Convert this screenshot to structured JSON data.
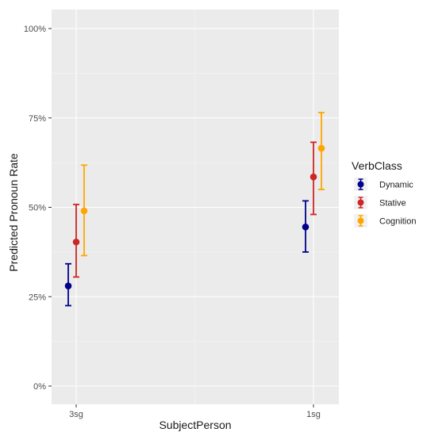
{
  "chart_data": {
    "type": "errorbar",
    "xlabel": "SubjectPerson",
    "ylabel": "Predicted Pronoun Rate",
    "categories": [
      "3sg",
      "1sg"
    ],
    "ylim": [
      0,
      1
    ],
    "yticks": [
      0,
      0.25,
      0.5,
      0.75,
      1.0
    ],
    "ytick_labels": [
      "0%",
      "25%",
      "50%",
      "75%",
      "100%"
    ],
    "grid": true,
    "legend": {
      "title": "VerbClass",
      "position": "right"
    },
    "series": [
      {
        "name": "Dynamic",
        "color": "#00008B",
        "points": [
          {
            "x": "3sg",
            "y": 0.28,
            "lower": 0.225,
            "upper": 0.342
          },
          {
            "x": "1sg",
            "y": 0.445,
            "lower": 0.375,
            "upper": 0.518
          }
        ]
      },
      {
        "name": "Stative",
        "color": "#CD2626",
        "points": [
          {
            "x": "3sg",
            "y": 0.403,
            "lower": 0.305,
            "upper": 0.508
          },
          {
            "x": "1sg",
            "y": 0.585,
            "lower": 0.48,
            "upper": 0.682
          }
        ]
      },
      {
        "name": "Cognition",
        "color": "#FFA500",
        "points": [
          {
            "x": "3sg",
            "y": 0.49,
            "lower": 0.365,
            "upper": 0.618
          },
          {
            "x": "1sg",
            "y": 0.665,
            "lower": 0.55,
            "upper": 0.765
          }
        ]
      }
    ]
  }
}
